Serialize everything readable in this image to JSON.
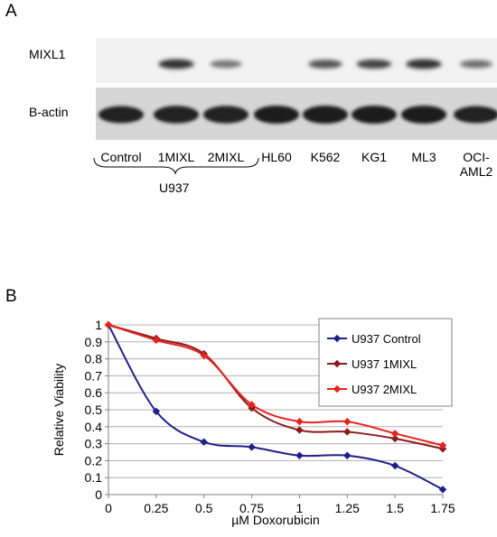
{
  "panel_a": {
    "letter": "A",
    "rows": [
      "MIXL1",
      "B-actin"
    ],
    "lanes": [
      "Control",
      "1MIXL",
      "2MIXL",
      "HL60",
      "K562",
      "KG1",
      "ML3",
      "OCI-AML2"
    ],
    "lane_lines": [
      [
        "Control"
      ],
      [
        "1MIXL"
      ],
      [
        "2MIXL"
      ],
      [
        "HL60"
      ],
      [
        "K562"
      ],
      [
        "KG1"
      ],
      [
        "ML3"
      ],
      [
        "OCI-",
        "AML2"
      ]
    ],
    "group_label": "U937",
    "mixl1_intensity": [
      0.0,
      0.95,
      0.55,
      0.0,
      0.75,
      0.85,
      0.95,
      0.6
    ],
    "actin_intensity": [
      0.9,
      0.95,
      0.95,
      1.0,
      1.0,
      1.0,
      1.0,
      0.9
    ]
  },
  "panel_b": {
    "letter": "B"
  },
  "chart_data": {
    "type": "line",
    "title": "",
    "xlabel": "µM Doxorubicin",
    "ylabel": "Relative Viability",
    "x": [
      0,
      0.25,
      0.5,
      0.75,
      1,
      1.25,
      1.5,
      1.75
    ],
    "x_tick_labels": [
      "0",
      "0.25",
      "0.5",
      "0.75",
      "1",
      "1.25",
      "1.5",
      "1.75"
    ],
    "y_ticks": [
      0,
      0.1,
      0.2,
      0.3,
      0.4,
      0.5,
      0.6,
      0.7,
      0.8,
      0.9,
      1
    ],
    "y_tick_labels": [
      "0",
      "0.1",
      "0.2",
      "0.3",
      "0.4",
      "0.5",
      "0.6",
      "0.7",
      "0.8",
      "0.9",
      "1"
    ],
    "xlim": [
      0,
      1.75
    ],
    "ylim": [
      0,
      1
    ],
    "grid": "horizontal",
    "legend_position": "top-right",
    "series": [
      {
        "name": "U937 Control",
        "color": "#1f1f8c",
        "values": [
          1.0,
          0.49,
          0.31,
          0.28,
          0.23,
          0.23,
          0.17,
          0.03
        ]
      },
      {
        "name": "U937 1MIXL",
        "color": "#8b1a1a",
        "values": [
          1.0,
          0.92,
          0.83,
          0.51,
          0.38,
          0.37,
          0.33,
          0.27
        ]
      },
      {
        "name": "U937 2MIXL",
        "color": "#e8231e",
        "values": [
          1.0,
          0.91,
          0.82,
          0.53,
          0.43,
          0.43,
          0.36,
          0.29
        ]
      }
    ]
  }
}
